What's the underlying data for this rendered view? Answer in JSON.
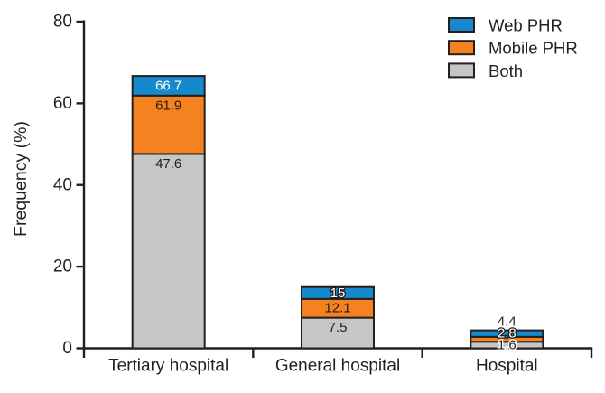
{
  "chart_data": {
    "type": "bar",
    "subtype": "stacked-bar",
    "title": "",
    "ylabel": "Frequency (%)",
    "xlabel": "",
    "ylim": [
      0,
      80
    ],
    "yticks": [
      0,
      20,
      40,
      60,
      80
    ],
    "grid": false,
    "categories": [
      "Tertiary hospital",
      "General hospital",
      "Hospital"
    ],
    "series": [
      {
        "name": "Both",
        "color": "#c5c6c8",
        "cumulative_values": [
          47.6,
          7.5,
          1.6
        ],
        "labels": [
          "47.6",
          "7.5",
          "1.6"
        ],
        "label_colors": [
          "#231f20",
          "#231f20",
          "#231f20"
        ]
      },
      {
        "name": "Mobile PHR",
        "color": "#f58220",
        "cumulative_values": [
          61.9,
          12.1,
          2.8
        ],
        "labels": [
          "61.9",
          "12.1",
          "2.8"
        ],
        "label_colors": [
          "#231f20",
          "#231f20",
          "#ffffff"
        ]
      },
      {
        "name": "Web PHR",
        "color": "#1589cb",
        "cumulative_values": [
          66.7,
          15,
          4.4
        ],
        "labels": [
          "66.7",
          "15",
          "4.4"
        ],
        "label_colors": [
          "#ffffff",
          "#ffffff",
          "#231f20"
        ]
      }
    ],
    "legend": {
      "position": "top-right",
      "entries": [
        "Web PHR",
        "Mobile PHR",
        "Both"
      ]
    },
    "colors": {
      "axis": "#231f20",
      "text": "#231f20",
      "background": "#ffffff"
    }
  }
}
